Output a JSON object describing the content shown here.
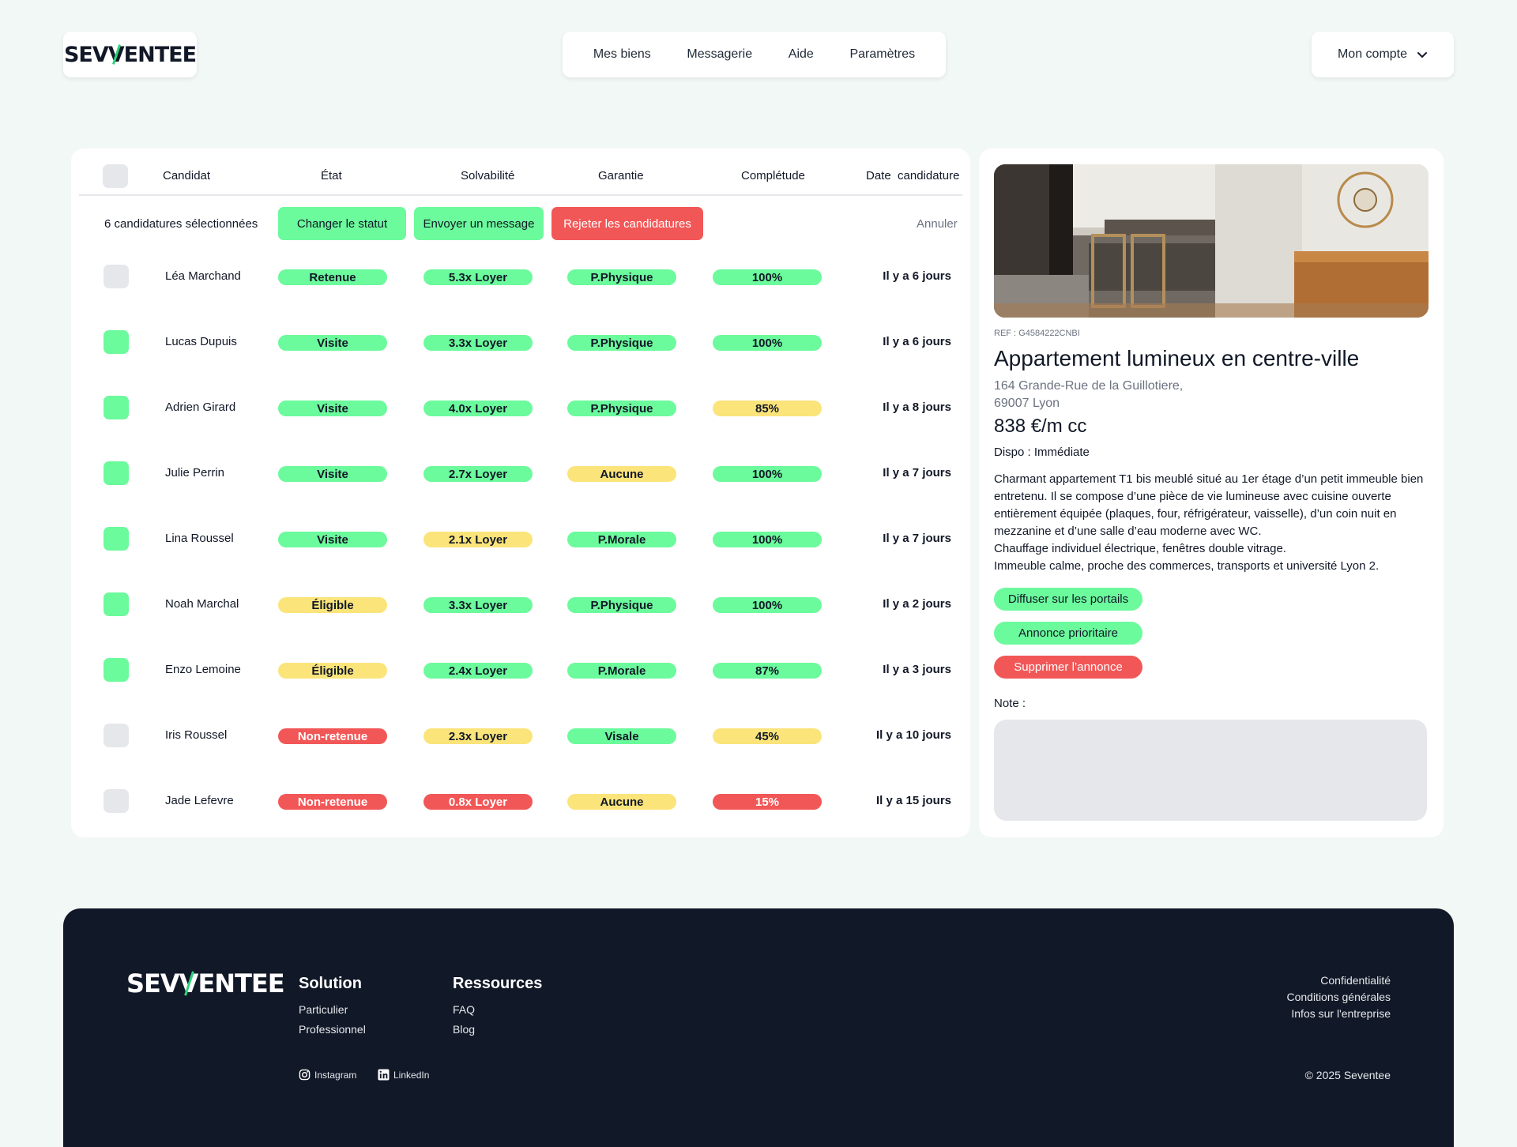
{
  "brand": {
    "logo_pre": "SEV",
    "logo_v": "/",
    "logo_post": "ENTEE",
    "accent_color": "#2dd37c"
  },
  "nav": {
    "items": [
      "Mes biens",
      "Messagerie",
      "Aide",
      "Paramètres"
    ]
  },
  "account": {
    "label": "Mon compte",
    "icon": "chevron-down-icon"
  },
  "table": {
    "headers": [
      "Candidat",
      "État",
      "Solvabilité",
      "Garantie",
      "Complétude",
      "Date  candidature"
    ],
    "selection_text": "6 candidatures sélectionnées",
    "actions": {
      "change_status": "Changer le statut",
      "send_message": "Envoyer un message",
      "reject": "Rejeter les candidatures",
      "cancel": "Annuler"
    },
    "colors": {
      "green": "#6bfa9c",
      "yellow": "#fbe47a",
      "red": "#f25757",
      "unchecked": "#e5e7eb"
    },
    "rows": [
      {
        "name": "Léa Marchand",
        "checked": false,
        "etat": "Retenue",
        "etat_c": "green",
        "solv": "5.3x Loyer",
        "solv_c": "green",
        "gar": "P.Physique",
        "gar_c": "green",
        "comp": "100%",
        "comp_c": "green",
        "date": "Il y a 6 jours"
      },
      {
        "name": "Lucas Dupuis",
        "checked": true,
        "etat": "Visite",
        "etat_c": "green",
        "solv": "3.3x Loyer",
        "solv_c": "green",
        "gar": "P.Physique",
        "gar_c": "green",
        "comp": "100%",
        "comp_c": "green",
        "date": "Il y a 6 jours"
      },
      {
        "name": "Adrien Girard",
        "checked": true,
        "etat": "Visite",
        "etat_c": "green",
        "solv": "4.0x Loyer",
        "solv_c": "green",
        "gar": "P.Physique",
        "gar_c": "green",
        "comp": "85%",
        "comp_c": "yellow",
        "date": "Il y a 8 jours"
      },
      {
        "name": "Julie Perrin",
        "checked": true,
        "etat": "Visite",
        "etat_c": "green",
        "solv": "2.7x Loyer",
        "solv_c": "green",
        "gar": "Aucune",
        "gar_c": "yellow",
        "comp": "100%",
        "comp_c": "green",
        "date": "Il y a 7 jours"
      },
      {
        "name": "Lina Roussel",
        "checked": true,
        "etat": "Visite",
        "etat_c": "green",
        "solv": "2.1x Loyer",
        "solv_c": "yellow",
        "gar": "P.Morale",
        "gar_c": "green",
        "comp": "100%",
        "comp_c": "green",
        "date": "Il y a 7 jours"
      },
      {
        "name": "Noah Marchal",
        "checked": true,
        "etat": "Éligible",
        "etat_c": "yellow",
        "solv": "3.3x Loyer",
        "solv_c": "green",
        "gar": "P.Physique",
        "gar_c": "green",
        "comp": "100%",
        "comp_c": "green",
        "date": "Il y a 2 jours"
      },
      {
        "name": "Enzo Lemoine",
        "checked": true,
        "etat": "Éligible",
        "etat_c": "yellow",
        "solv": "2.4x Loyer",
        "solv_c": "green",
        "gar": "P.Morale",
        "gar_c": "green",
        "comp": "87%",
        "comp_c": "green",
        "date": "Il y a 3 jours"
      },
      {
        "name": "Iris Roussel",
        "checked": false,
        "etat": "Non-retenue",
        "etat_c": "red",
        "solv": "2.3x Loyer",
        "solv_c": "yellow",
        "gar": "Visale",
        "gar_c": "green",
        "comp": "45%",
        "comp_c": "yellow",
        "date": "Il y a 10 jours"
      },
      {
        "name": "Jade Lefevre",
        "checked": false,
        "etat": "Non-retenue",
        "etat_c": "red",
        "solv": "0.8x Loyer",
        "solv_c": "red",
        "gar": "Aucune",
        "gar_c": "yellow",
        "comp": "15%",
        "comp_c": "red",
        "date": "Il y a 15 jours"
      }
    ]
  },
  "listing": {
    "ref": "REF : G4584222CNBI",
    "title": "Appartement lumineux en centre-ville",
    "address_line1": "164 Grande-Rue de la Guillotiere,",
    "address_line2": "69007 Lyon",
    "price": "838 €/m cc",
    "dispo": "Dispo : Immédiate",
    "description": [
      "Charmant appartement T1 bis meublé situé au 1er étage d’un petit immeuble bien entretenu. Il se compose d’une pièce de vie lumineuse avec cuisine ouverte entièrement équipée (plaques, four, réfrigérateur, vaisselle), d’un coin nuit en mezzanine et d’une salle d’eau moderne avec WC.",
      "Chauffage individuel électrique, fenêtres double vitrage.",
      "Immeuble calme, proche des commerces, transports et université Lyon 2."
    ],
    "buttons": {
      "diffuse": "Diffuser sur les portails",
      "priority": "Annonce prioritaire",
      "delete": "Supprimer l’annonce"
    },
    "note_label": "Note :",
    "note_value": ""
  },
  "footer": {
    "solution_title": "Solution",
    "solution_links": [
      "Particulier",
      "Professionnel"
    ],
    "resources_title": "Ressources",
    "resources_links": [
      "FAQ",
      "Blog"
    ],
    "legal_links": [
      "Confidentialité",
      "Conditions générales",
      "Infos sur l'entreprise"
    ],
    "social": [
      {
        "label": "Instagram",
        "icon": "instagram-icon"
      },
      {
        "label": "LinkedIn",
        "icon": "linkedin-icon"
      }
    ],
    "copyright": "© 2025 Seventee"
  }
}
